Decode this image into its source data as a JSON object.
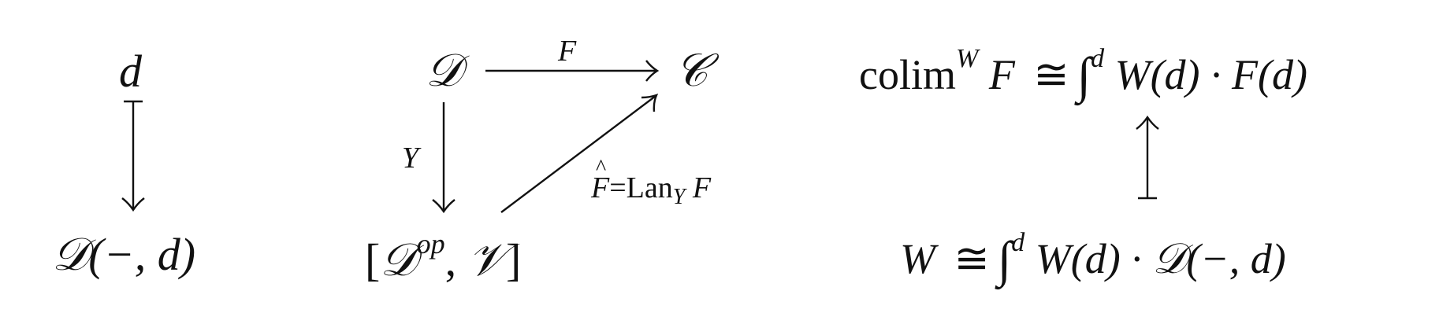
{
  "diagram1": {
    "top": "d",
    "bottom_script": "𝒟",
    "bottom_rest": "(−, d)"
  },
  "diagram2": {
    "top_left": "𝒟",
    "top_right": "𝒞",
    "arrow_F_label": "F",
    "arrow_Y_label": "Y",
    "bottom_open": "[",
    "bottom_D": "𝒟",
    "bottom_op": "op",
    "bottom_sep": ", ",
    "bottom_V": "𝒱",
    "bottom_close": "]",
    "diag_label_F": "F",
    "diag_label_eq": "=Lan",
    "diag_label_sub": "Y",
    "diag_label_tail": " F"
  },
  "diagram3": {
    "top_colim": "colim",
    "top_colim_sup": "W",
    "top_F": " F",
    "top_iso": "≅",
    "top_int": "∫",
    "top_int_sup": "d",
    "top_rhs": " W(d) · F(d)",
    "bottom_W": "W",
    "bottom_iso": "≅",
    "bottom_int": "∫",
    "bottom_int_sup": "d",
    "bottom_rhs_a": " W(d) · ",
    "bottom_rhs_D": "𝒟",
    "bottom_rhs_b": "(−, d)"
  }
}
